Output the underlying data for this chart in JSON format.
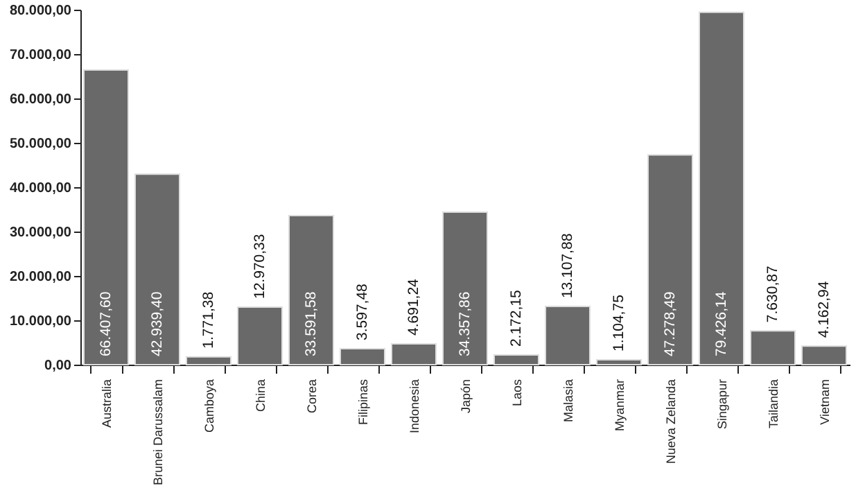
{
  "chart_data": {
    "type": "bar",
    "categories": [
      "Australia",
      "Brunei Darussalam",
      "Camboya",
      "China",
      "Corea",
      "Filipinas",
      "Indonesia",
      "Japón",
      "Laos",
      "Malasia",
      "Myanmar",
      "Nueva Zelanda",
      "Singapur",
      "Tailandia",
      "Vietnam"
    ],
    "values": [
      66407.6,
      42939.4,
      1771.38,
      12970.33,
      33591.58,
      3597.48,
      4691.24,
      34357.86,
      2172.15,
      13107.88,
      1104.75,
      47278.49,
      79426.14,
      7630.87,
      4162.94
    ],
    "value_labels": [
      "66.407,60",
      "42.939,40",
      "1.771,38",
      "12.970,33",
      "33.591,58",
      "3.597,48",
      "4.691,24",
      "34.357,86",
      "2.172,15",
      "13.107,88",
      "1.104,75",
      "47.278,49",
      "79.426,14",
      "7.630,87",
      "4.162,94"
    ],
    "color": "#696969",
    "ylim": [
      0,
      80000
    ],
    "yticks": [
      {
        "value": 0,
        "label": "0,00"
      },
      {
        "value": 10000,
        "label": "10.000,00"
      },
      {
        "value": 20000,
        "label": "20.000,00"
      },
      {
        "value": 30000,
        "label": "30.000,00"
      },
      {
        "value": 40000,
        "label": "40.000,00"
      },
      {
        "value": 50000,
        "label": "50.000,00"
      },
      {
        "value": 60000,
        "label": "60.000,00"
      },
      {
        "value": 70000,
        "label": "70.000,00"
      },
      {
        "value": 80000,
        "label": "80.000,00"
      }
    ],
    "grid": false
  }
}
